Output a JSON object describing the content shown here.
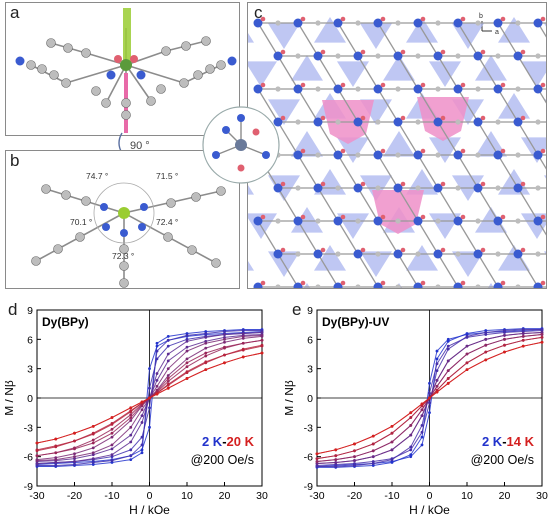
{
  "panel_labels": {
    "a": "a",
    "b": "b",
    "c": "c",
    "d": "d",
    "e": "e"
  },
  "rotation_label": "90 °",
  "angles": [
    "74.7 °",
    "71.5 °",
    "70.1 °",
    "72.4 °",
    "72.3 °"
  ],
  "lattice_axes": {
    "b": "b",
    "a": "a"
  },
  "colors": {
    "blue": "#2233cc",
    "red": "#d42020",
    "ball": "#bdbdbd",
    "N": "#3a5bd0",
    "O": "#e06070",
    "pink": "#ee8fc8",
    "lightblue": "#a9b4ef"
  },
  "chart_data": [
    {
      "type": "line",
      "title": "Dy(BPy)",
      "legend": {
        "range_start": "2 K",
        "sep": "-",
        "range_end": "20 K",
        "rate": "@200 Oe/s"
      },
      "xlabel": "H / kOe",
      "ylabel": "M / Nβ",
      "xlim": [
        -30,
        30
      ],
      "ylim": [
        -9,
        9
      ],
      "xticks": [
        -30,
        -20,
        -10,
        0,
        10,
        20,
        30
      ],
      "yticks": [
        -9,
        -6,
        -3,
        0,
        3,
        6,
        9
      ],
      "temperatures_K": [
        2,
        3,
        4,
        5,
        6,
        7,
        8,
        9,
        10,
        11,
        12,
        13,
        14,
        15,
        16,
        18,
        20
      ],
      "x": [
        -30,
        -25,
        -20,
        -15,
        -10,
        -5,
        -2,
        0,
        2,
        5,
        10,
        15,
        20,
        25,
        30
      ],
      "series": [
        {
          "T": 2,
          "up": [
            -6.8,
            -6.7,
            -6.6,
            -6.5,
            -6.3,
            -5.9,
            -5.3,
            -3.0,
            5.6,
            6.3,
            6.6,
            6.8,
            6.9,
            7.0,
            7.0
          ]
        },
        {
          "T": 3,
          "up": [
            -6.7,
            -6.6,
            -6.5,
            -6.3,
            -6.0,
            -5.3,
            -4.0,
            -1.0,
            4.8,
            5.9,
            6.4,
            6.6,
            6.8,
            6.9,
            6.9
          ]
        },
        {
          "T": 5,
          "up": [
            -6.5,
            -6.4,
            -6.2,
            -5.8,
            -5.2,
            -3.8,
            -1.8,
            0.0,
            2.5,
            4.5,
            5.8,
            6.2,
            6.5,
            6.6,
            6.7
          ]
        },
        {
          "T": 7,
          "up": [
            -6.3,
            -6.1,
            -5.7,
            -5.1,
            -4.0,
            -2.3,
            -0.8,
            0.0,
            1.2,
            3.0,
            4.8,
            5.6,
            6.0,
            6.3,
            6.4
          ]
        },
        {
          "T": 10,
          "up": [
            -5.9,
            -5.6,
            -5.1,
            -4.3,
            -3.2,
            -1.7,
            -0.6,
            0.0,
            0.7,
            2.0,
            3.6,
            4.6,
            5.2,
            5.6,
            5.9
          ]
        },
        {
          "T": 14,
          "up": [
            -5.4,
            -5.0,
            -4.4,
            -3.6,
            -2.6,
            -1.3,
            -0.5,
            0.0,
            0.5,
            1.4,
            2.7,
            3.7,
            4.4,
            4.9,
            5.3
          ]
        },
        {
          "T": 20,
          "up": [
            -4.6,
            -4.2,
            -3.6,
            -2.9,
            -2.0,
            -1.0,
            -0.4,
            0.0,
            0.4,
            1.0,
            2.0,
            2.9,
            3.6,
            4.2,
            4.6
          ]
        }
      ]
    },
    {
      "type": "line",
      "title": "Dy(BPy)-UV",
      "legend": {
        "range_start": "2 K",
        "sep": "-",
        "range_end": "14 K",
        "rate": "@200 Oe/s"
      },
      "xlabel": "H / kOe",
      "ylabel": "M / Nβ",
      "xlim": [
        -30,
        30
      ],
      "ylim": [
        -9,
        9
      ],
      "xticks": [
        -30,
        -20,
        -10,
        0,
        10,
        20,
        30
      ],
      "yticks": [
        -9,
        -6,
        -3,
        0,
        3,
        6,
        9
      ],
      "temperatures_K": [
        2,
        3,
        4,
        5,
        6,
        7,
        8,
        9,
        10,
        11,
        12,
        13,
        14
      ],
      "x": [
        -30,
        -25,
        -20,
        -15,
        -10,
        -5,
        -2,
        0,
        2,
        5,
        10,
        15,
        20,
        25,
        30
      ],
      "series": [
        {
          "T": 2,
          "up": [
            -7.0,
            -6.9,
            -6.8,
            -6.7,
            -6.5,
            -6.0,
            -4.8,
            -1.5,
            4.0,
            5.8,
            6.6,
            6.9,
            7.0,
            7.1,
            7.1
          ]
        },
        {
          "T": 3,
          "up": [
            -6.9,
            -6.8,
            -6.7,
            -6.5,
            -6.2,
            -5.3,
            -3.5,
            -0.5,
            2.8,
            5.0,
            6.3,
            6.7,
            6.9,
            7.0,
            7.0
          ]
        },
        {
          "T": 5,
          "up": [
            -6.7,
            -6.6,
            -6.4,
            -6.0,
            -5.3,
            -3.8,
            -1.8,
            0.0,
            1.8,
            3.8,
            5.3,
            6.0,
            6.4,
            6.6,
            6.7
          ]
        },
        {
          "T": 7,
          "up": [
            -6.5,
            -6.3,
            -6.0,
            -5.4,
            -4.5,
            -2.8,
            -1.2,
            0.0,
            1.2,
            2.8,
            4.5,
            5.4,
            6.0,
            6.3,
            6.5
          ]
        },
        {
          "T": 10,
          "up": [
            -6.2,
            -5.9,
            -5.4,
            -4.7,
            -3.6,
            -2.0,
            -0.8,
            0.0,
            0.8,
            2.0,
            3.6,
            4.7,
            5.4,
            5.9,
            6.2
          ]
        },
        {
          "T": 14,
          "up": [
            -5.7,
            -5.3,
            -4.7,
            -3.9,
            -2.9,
            -1.5,
            -0.6,
            0.0,
            0.6,
            1.5,
            2.9,
            3.9,
            4.7,
            5.3,
            5.7
          ]
        }
      ]
    }
  ]
}
